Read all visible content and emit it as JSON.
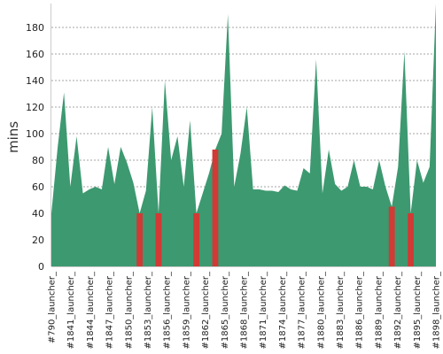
{
  "chart_data": {
    "type": "area",
    "ylabel": "mins",
    "ylim": [
      0,
      198
    ],
    "yticks": [
      0,
      20,
      40,
      60,
      80,
      100,
      120,
      140,
      160,
      180
    ],
    "grid": true,
    "colors": {
      "success": "#3d9970",
      "failure": "#d13a35",
      "grid": "#888888",
      "axis": "#cccccc"
    },
    "xtick_labels": [
      "#790_launcher_",
      "#1841_launcher_",
      "#1844_launcher_",
      "#1847_launcher_",
      "#1850_launcher_",
      "#1853_launcher_",
      "#1856_launcher_",
      "#1859_launcher_",
      "#1862_launcher_",
      "#1865_launcher_",
      "#1868_launcher_",
      "#1871_launcher_",
      "#1874_launcher_",
      "#1877_launcher_",
      "#1880_launcher_",
      "#1883_launcher_",
      "#1886_launcher_",
      "#1889_launcher_",
      "#1892_launcher_",
      "#1895_launcher_",
      "#1898_launcher_"
    ],
    "values": [
      40,
      90,
      131,
      60,
      98,
      55,
      58,
      60,
      58,
      90,
      62,
      90,
      78,
      63,
      40,
      57,
      120,
      40,
      140,
      80,
      98,
      60,
      110,
      40,
      55,
      70,
      88,
      100,
      190,
      60,
      85,
      120,
      58,
      58,
      57,
      57,
      56,
      61,
      58,
      57,
      74,
      70,
      156,
      55,
      88,
      62,
      57,
      60,
      80,
      60,
      60,
      58,
      80,
      60,
      45,
      75,
      162,
      40,
      80,
      63,
      75,
      198
    ],
    "failed_indices": [
      14,
      17,
      23,
      26,
      54,
      57
    ]
  }
}
